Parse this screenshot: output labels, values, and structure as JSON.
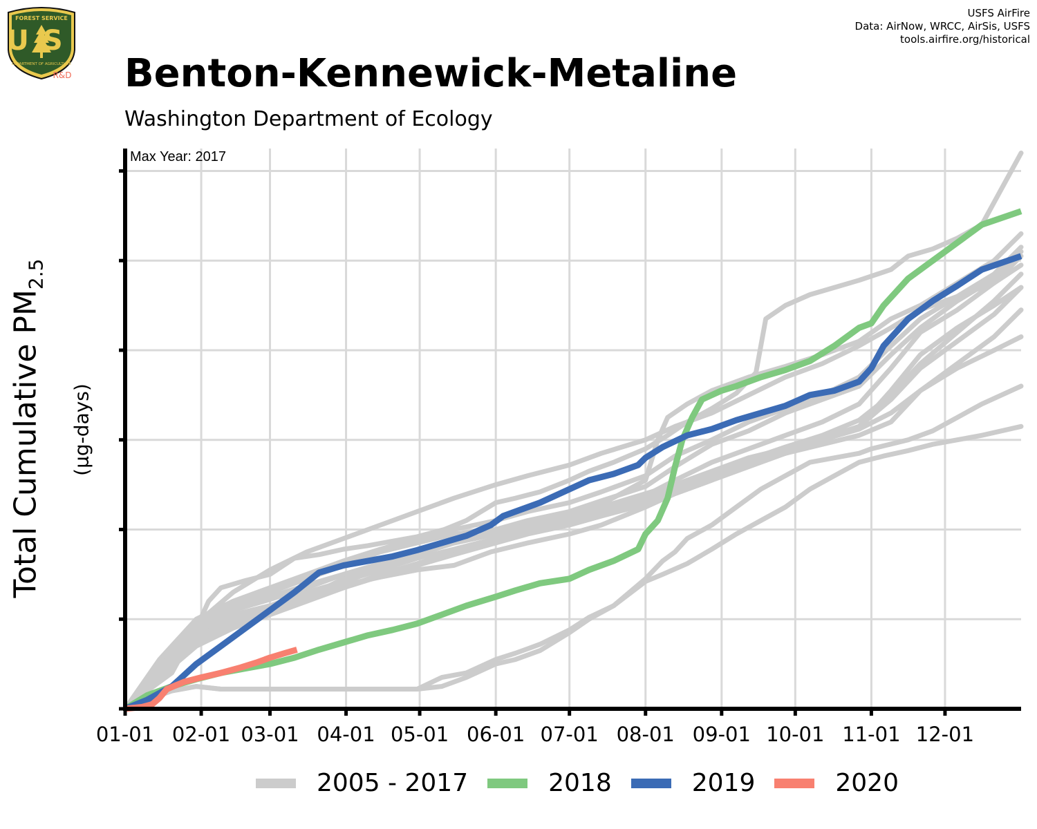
{
  "header": {
    "title": "Benton-Kennewick-Metaline",
    "subtitle": "Washington Department of Ecology",
    "credits": [
      "USFS AirFire",
      "Data: AirNow, WRCC, AirSis, USFS",
      "tools.airfire.org/historical"
    ]
  },
  "logo": {
    "text_top": "FOREST SERVICE",
    "letters": "US",
    "text_bottom": "DEPARTMENT OF AGRICULTURE",
    "tag": "R&D"
  },
  "y_axis": {
    "label": "Total Cumulative PM",
    "subscript": "2.5",
    "unit": "(µg-days)"
  },
  "annotation": "Max Year: 2017",
  "colors": {
    "history": "#cccccc",
    "y2018": "#7fc97f",
    "y2019": "#3b6bb5",
    "y2020": "#f88070",
    "logo_green": "#2f5a28",
    "logo_gold": "#e9c94e"
  },
  "chart_data": {
    "type": "line",
    "title": "Benton-Kennewick-Metaline",
    "subtitle": "Washington Department of Ecology",
    "xlabel": "",
    "ylabel": "Total Cumulative PM2.5 (µg-days)",
    "x_unit": "day of year",
    "x_ticks": [
      {
        "day": 1,
        "label": "01-01"
      },
      {
        "day": 32,
        "label": "02-01"
      },
      {
        "day": 60,
        "label": "03-01"
      },
      {
        "day": 91,
        "label": "04-01"
      },
      {
        "day": 121,
        "label": "05-01"
      },
      {
        "day": 152,
        "label": "06-01"
      },
      {
        "day": 182,
        "label": "07-01"
      },
      {
        "day": 213,
        "label": "08-01"
      },
      {
        "day": 244,
        "label": "09-01"
      },
      {
        "day": 274,
        "label": "10-01"
      },
      {
        "day": 305,
        "label": "11-01"
      },
      {
        "day": 335,
        "label": "12-01"
      }
    ],
    "xlim": [
      1,
      366
    ],
    "y_ticks": [
      0,
      1,
      2,
      3,
      4,
      5,
      6
    ],
    "ylim": [
      0,
      6.25
    ],
    "y_tick_labels_shown": false,
    "grid": true,
    "legend": "bottom",
    "legend_entries": [
      "2005 - 2017",
      "2018",
      "2019",
      "2020"
    ],
    "history_series": [
      {
        "x": [
          1,
          10,
          20,
          30,
          35,
          40,
          50,
          60,
          70,
          80,
          90,
          100,
          110,
          120,
          131,
          140,
          152,
          160,
          170,
          182,
          190,
          200,
          213,
          222,
          230,
          240,
          250,
          258,
          262,
          270,
          280,
          290,
          300,
          313,
          320,
          330,
          340,
          350,
          366
        ],
        "y": [
          0,
          0.2,
          0.4,
          0.9,
          1.2,
          1.35,
          1.43,
          1.5,
          1.68,
          1.72,
          1.78,
          1.82,
          1.87,
          1.92,
          2.0,
          2.1,
          2.3,
          2.35,
          2.42,
          2.55,
          2.65,
          2.75,
          2.9,
          3.05,
          3.2,
          3.35,
          3.52,
          3.75,
          4.35,
          4.5,
          4.62,
          4.7,
          4.78,
          4.9,
          5.05,
          5.13,
          5.25,
          5.4,
          6.2
        ]
      },
      {
        "x": [
          1,
          10,
          20,
          30,
          40,
          50,
          60,
          70,
          80,
          90,
          100,
          110,
          120,
          130,
          140,
          152,
          160,
          170,
          182,
          190,
          200,
          213,
          220,
          225,
          230,
          240,
          250,
          260,
          270,
          280,
          290,
          300,
          305,
          320,
          330,
          340,
          350,
          366
        ],
        "y": [
          0,
          0.1,
          0.2,
          0.25,
          0.22,
          0.22,
          0.22,
          0.22,
          0.22,
          0.22,
          0.22,
          0.22,
          0.22,
          0.25,
          0.35,
          0.5,
          0.55,
          0.65,
          0.85,
          1.0,
          1.15,
          1.45,
          1.65,
          1.75,
          1.9,
          2.05,
          2.25,
          2.45,
          2.6,
          2.75,
          2.8,
          2.85,
          2.9,
          3.0,
          3.1,
          3.25,
          3.4,
          3.6
        ]
      },
      {
        "x": [
          1,
          10,
          20,
          30,
          40,
          50,
          60,
          70,
          80,
          90,
          100,
          110,
          120,
          130,
          140,
          152,
          160,
          170,
          182,
          190,
          200,
          213,
          220,
          230,
          240,
          250,
          260,
          270,
          280,
          290,
          300,
          310,
          320,
          330,
          340,
          350,
          366
        ],
        "y": [
          0,
          0.1,
          0.2,
          0.25,
          0.22,
          0.22,
          0.22,
          0.22,
          0.22,
          0.22,
          0.22,
          0.22,
          0.22,
          0.35,
          0.4,
          0.55,
          0.62,
          0.72,
          0.88,
          1.02,
          1.15,
          1.42,
          1.5,
          1.62,
          1.78,
          1.95,
          2.1,
          2.25,
          2.45,
          2.6,
          2.75,
          2.82,
          2.88,
          2.95,
          3.0,
          3.05,
          3.15
        ]
      },
      {
        "x": [
          1,
          15,
          30,
          45,
          60,
          75,
          90,
          105,
          120,
          135,
          150,
          165,
          182,
          195,
          213,
          225,
          240,
          255,
          270,
          285,
          300,
          313,
          325,
          340,
          355,
          366
        ],
        "y": [
          0,
          0.45,
          0.85,
          1.05,
          1.15,
          1.25,
          1.38,
          1.47,
          1.55,
          1.6,
          1.75,
          1.85,
          1.95,
          2.05,
          2.25,
          2.4,
          2.55,
          2.75,
          2.85,
          2.95,
          3.05,
          3.2,
          3.55,
          3.8,
          4.0,
          4.15
        ]
      },
      {
        "x": [
          1,
          15,
          30,
          45,
          60,
          75,
          90,
          105,
          120,
          135,
          152,
          165,
          182,
          195,
          213,
          225,
          240,
          255,
          270,
          285,
          300,
          313,
          325,
          340,
          355,
          366
        ],
        "y": [
          0,
          0.4,
          0.75,
          0.95,
          1.1,
          1.25,
          1.45,
          1.6,
          1.72,
          1.85,
          1.95,
          2.05,
          2.15,
          2.25,
          2.4,
          2.5,
          2.65,
          2.8,
          2.9,
          3.0,
          3.15,
          3.55,
          3.95,
          4.25,
          4.5,
          4.7
        ]
      },
      {
        "x": [
          1,
          15,
          30,
          45,
          60,
          75,
          90,
          105,
          120,
          135,
          152,
          165,
          182,
          195,
          213,
          225,
          240,
          255,
          270,
          285,
          300,
          313,
          325,
          340,
          355,
          366
        ],
        "y": [
          0,
          0.35,
          0.7,
          0.9,
          1.05,
          1.2,
          1.35,
          1.5,
          1.62,
          1.75,
          1.87,
          1.97,
          2.08,
          2.2,
          2.38,
          2.55,
          2.75,
          2.9,
          3.05,
          3.2,
          3.4,
          3.8,
          4.2,
          4.45,
          4.75,
          5.05
        ]
      },
      {
        "x": [
          1,
          15,
          30,
          45,
          60,
          75,
          90,
          105,
          120,
          135,
          152,
          165,
          182,
          195,
          213,
          225,
          240,
          255,
          270,
          285,
          300,
          313,
          325,
          340,
          355,
          366
        ],
        "y": [
          0,
          0.5,
          0.95,
          1.15,
          1.3,
          1.45,
          1.6,
          1.75,
          1.85,
          1.95,
          2.0,
          2.1,
          2.2,
          2.32,
          2.48,
          2.7,
          2.95,
          3.1,
          3.3,
          3.45,
          3.6,
          3.95,
          4.25,
          4.55,
          4.8,
          5.1
        ]
      },
      {
        "x": [
          1,
          15,
          30,
          45,
          60,
          75,
          90,
          105,
          120,
          135,
          152,
          165,
          182,
          195,
          213,
          225,
          240,
          255,
          270,
          285,
          300,
          313,
          325,
          340,
          355,
          366
        ],
        "y": [
          0,
          0.45,
          0.85,
          1.1,
          1.25,
          1.38,
          1.5,
          1.62,
          1.75,
          1.85,
          1.97,
          2.05,
          2.15,
          2.25,
          2.35,
          2.45,
          2.62,
          2.78,
          2.92,
          3.05,
          3.22,
          3.5,
          3.85,
          4.2,
          4.55,
          4.85
        ]
      },
      {
        "x": [
          1,
          15,
          30,
          45,
          60,
          75,
          90,
          105,
          120,
          135,
          152,
          165,
          182,
          195,
          213,
          225,
          240,
          255,
          270,
          285,
          300,
          313,
          325,
          340,
          355,
          366
        ],
        "y": [
          0,
          0.55,
          1.0,
          1.2,
          1.35,
          1.5,
          1.65,
          1.78,
          1.9,
          2.0,
          2.1,
          2.2,
          2.3,
          2.42,
          2.6,
          2.82,
          3.0,
          3.2,
          3.35,
          3.5,
          3.7,
          4.05,
          4.35,
          4.6,
          4.85,
          5.15
        ]
      },
      {
        "x": [
          1,
          15,
          30,
          45,
          60,
          75,
          90,
          105,
          120,
          135,
          152,
          165,
          182,
          195,
          213,
          225,
          240,
          255,
          270,
          285,
          300,
          313,
          325,
          340,
          355,
          366
        ],
        "y": [
          0,
          0.4,
          0.8,
          1.0,
          1.15,
          1.3,
          1.42,
          1.55,
          1.68,
          1.78,
          1.9,
          2.0,
          2.1,
          2.2,
          2.32,
          2.45,
          2.6,
          2.75,
          2.9,
          3.02,
          3.15,
          3.45,
          3.8,
          4.1,
          4.4,
          4.7
        ]
      },
      {
        "x": [
          1,
          15,
          30,
          45,
          60,
          75,
          90,
          105,
          120,
          135,
          152,
          165,
          182,
          195,
          213,
          218,
          222,
          230,
          240,
          255,
          270,
          285,
          300,
          313,
          325,
          340,
          355,
          366
        ],
        "y": [
          0,
          0.5,
          0.9,
          1.1,
          1.22,
          1.35,
          1.5,
          1.62,
          1.75,
          1.85,
          1.95,
          2.05,
          2.15,
          2.28,
          2.55,
          3.0,
          3.25,
          3.4,
          3.55,
          3.7,
          3.82,
          3.95,
          4.1,
          4.35,
          4.5,
          4.75,
          5.0,
          5.3
        ]
      },
      {
        "x": [
          1,
          15,
          30,
          45,
          60,
          75,
          90,
          105,
          120,
          135,
          152,
          165,
          182,
          195,
          213,
          225,
          240,
          255,
          270,
          285,
          300,
          313,
          325,
          340,
          355,
          366
        ],
        "y": [
          0,
          0.45,
          0.95,
          1.3,
          1.55,
          1.75,
          1.9,
          2.05,
          2.2,
          2.35,
          2.5,
          2.6,
          2.72,
          2.85,
          3.0,
          3.15,
          3.3,
          3.5,
          3.7,
          3.85,
          4.05,
          4.25,
          4.45,
          4.6,
          4.75,
          4.95
        ]
      },
      {
        "x": [
          1,
          15,
          30,
          45,
          60,
          75,
          90,
          105,
          120,
          135,
          152,
          165,
          182,
          195,
          213,
          225,
          240,
          255,
          270,
          285,
          300,
          313,
          325,
          340,
          355,
          366
        ],
        "y": [
          0,
          0.4,
          0.75,
          0.95,
          1.1,
          1.22,
          1.35,
          1.48,
          1.6,
          1.72,
          1.85,
          1.95,
          2.05,
          2.15,
          2.28,
          2.4,
          2.55,
          2.7,
          2.85,
          3.0,
          3.12,
          3.3,
          3.55,
          3.85,
          4.15,
          4.45
        ]
      }
    ],
    "series": [
      {
        "name": "2018",
        "x": [
          1,
          10,
          20,
          30,
          40,
          50,
          60,
          70,
          80,
          90,
          100,
          110,
          120,
          130,
          140,
          152,
          160,
          170,
          182,
          190,
          200,
          210,
          213,
          218,
          222,
          225,
          228,
          232,
          236,
          240,
          244,
          250,
          260,
          270,
          280,
          290,
          300,
          305,
          310,
          320,
          330,
          340,
          350,
          366
        ],
        "y": [
          0,
          0.15,
          0.25,
          0.33,
          0.4,
          0.45,
          0.5,
          0.57,
          0.66,
          0.74,
          0.82,
          0.88,
          0.95,
          1.05,
          1.15,
          1.25,
          1.32,
          1.4,
          1.45,
          1.55,
          1.65,
          1.78,
          1.95,
          2.1,
          2.35,
          2.7,
          3.0,
          3.25,
          3.45,
          3.5,
          3.55,
          3.6,
          3.7,
          3.78,
          3.88,
          4.05,
          4.25,
          4.3,
          4.5,
          4.8,
          5.0,
          5.2,
          5.4,
          5.55
        ]
      },
      {
        "name": "2019",
        "x": [
          1,
          10,
          20,
          30,
          40,
          50,
          60,
          70,
          80,
          90,
          100,
          110,
          120,
          130,
          140,
          150,
          155,
          160,
          170,
          182,
          190,
          200,
          210,
          213,
          220,
          230,
          240,
          250,
          260,
          270,
          280,
          290,
          300,
          305,
          310,
          320,
          330,
          340,
          350,
          366
        ],
        "y": [
          0,
          0.1,
          0.25,
          0.5,
          0.7,
          0.9,
          1.1,
          1.3,
          1.52,
          1.6,
          1.65,
          1.7,
          1.77,
          1.85,
          1.93,
          2.05,
          2.15,
          2.2,
          2.3,
          2.45,
          2.55,
          2.62,
          2.72,
          2.8,
          2.92,
          3.05,
          3.12,
          3.22,
          3.3,
          3.38,
          3.5,
          3.55,
          3.65,
          3.8,
          4.05,
          4.35,
          4.55,
          4.72,
          4.9,
          5.05
        ]
      },
      {
        "name": "2020",
        "x": [
          1,
          8,
          12,
          15,
          18,
          25,
          32,
          40,
          48,
          55,
          60,
          66,
          71
        ],
        "y": [
          0,
          0.02,
          0.05,
          0.12,
          0.22,
          0.3,
          0.35,
          0.4,
          0.46,
          0.52,
          0.57,
          0.62,
          0.66
        ]
      }
    ]
  }
}
